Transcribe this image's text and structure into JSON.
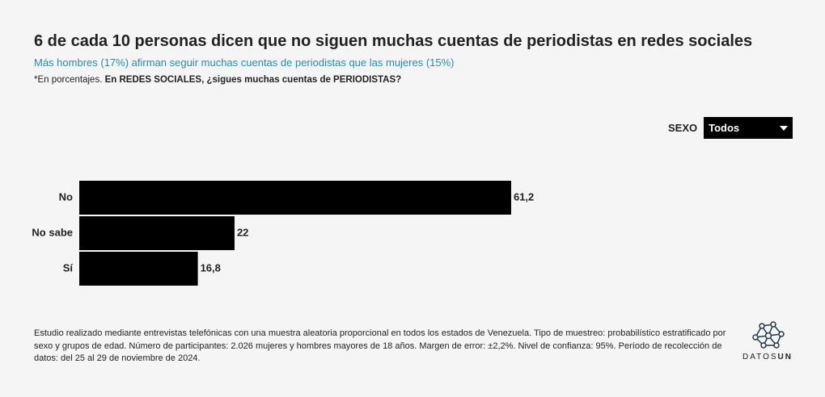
{
  "chart_data": {
    "type": "bar",
    "orientation": "horizontal",
    "title": "6 de cada 10 personas dicen que no siguen muchas cuentas de periodistas en redes sociales",
    "subtitle": "Más hombres (17%) afirman seguir muchas cuentas de periodistas que las mujeres (15%)",
    "note_prefix": "*En porcentajes.",
    "question": "En REDES SOCIALES, ¿sigues muchas cuentas de PERIODISTAS?",
    "categories": [
      "No",
      "No sabe",
      "Sí"
    ],
    "values": [
      61.2,
      22,
      16.8
    ],
    "value_labels": [
      "61,2",
      "22",
      "16,8"
    ],
    "color": "#000000"
  },
  "filter": {
    "label": "SEXO",
    "selected": "Todos"
  },
  "footnote": "Estudio realizado mediante entrevistas telefónicas con una muestra aleatoria proporcional en todos los estados de Venezuela. Tipo de muestreo: probabilístico estratificado por sexo y grupos de edad. Número de participantes: 2.026 mujeres y hombres mayores de 18 años. Margen de error: ±2,2%. Nivel de confianza: 95%. Período de recolección de datos: del 25 al 29 de noviembre de 2024.",
  "logo": {
    "text": "DATOS",
    "bold": "UN"
  }
}
